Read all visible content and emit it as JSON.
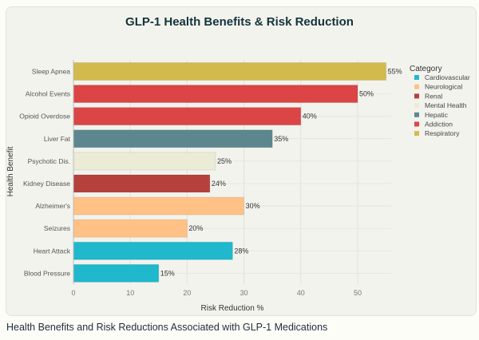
{
  "caption": "Health Benefits and Risk Reductions Associated with GLP-1 Medications",
  "chart_data": {
    "type": "bar",
    "orientation": "horizontal",
    "title": "GLP-1 Health Benefits & Risk Reduction",
    "xlabel": "Risk Reduction %",
    "ylabel": "Health Benefit",
    "xlim": [
      0,
      57
    ],
    "xticks": [
      0,
      10,
      20,
      30,
      40,
      50
    ],
    "grid": true,
    "legend_title": "Category",
    "legend_position": "right",
    "legend": [
      {
        "name": "Cardiovascular",
        "color": "#1FB8CD"
      },
      {
        "name": "Neurological",
        "color": "#FFC185"
      },
      {
        "name": "Renal",
        "color": "#B4413C"
      },
      {
        "name": "Mental Health",
        "color": "#ECEBD5"
      },
      {
        "name": "Hepatic",
        "color": "#5D878F"
      },
      {
        "name": "Addiction",
        "color": "#DB4545"
      },
      {
        "name": "Respiratory",
        "color": "#D2BA4C"
      }
    ],
    "bars": [
      {
        "label": "Sleep Apnea",
        "value": 55,
        "data_label": "55%",
        "category": "Respiratory"
      },
      {
        "label": "Alcohol Events",
        "value": 50,
        "data_label": "50%",
        "category": "Addiction"
      },
      {
        "label": "Opioid Overdose",
        "value": 40,
        "data_label": "40%",
        "category": "Addiction"
      },
      {
        "label": "Liver Fat",
        "value": 35,
        "data_label": "35%",
        "category": "Hepatic"
      },
      {
        "label": "Psychotic Dis.",
        "value": 25,
        "data_label": "25%",
        "category": "Mental Health"
      },
      {
        "label": "Kidney Disease",
        "value": 24,
        "data_label": "24%",
        "category": "Renal"
      },
      {
        "label": "Alzheimer's",
        "value": 30,
        "data_label": "30%",
        "category": "Neurological"
      },
      {
        "label": "Seizures",
        "value": 20,
        "data_label": "20%",
        "category": "Neurological"
      },
      {
        "label": "Heart Attack",
        "value": 28,
        "data_label": "28%",
        "category": "Cardiovascular"
      },
      {
        "label": "Blood Pressure",
        "value": 15,
        "data_label": "15%",
        "category": "Cardiovascular"
      }
    ]
  }
}
